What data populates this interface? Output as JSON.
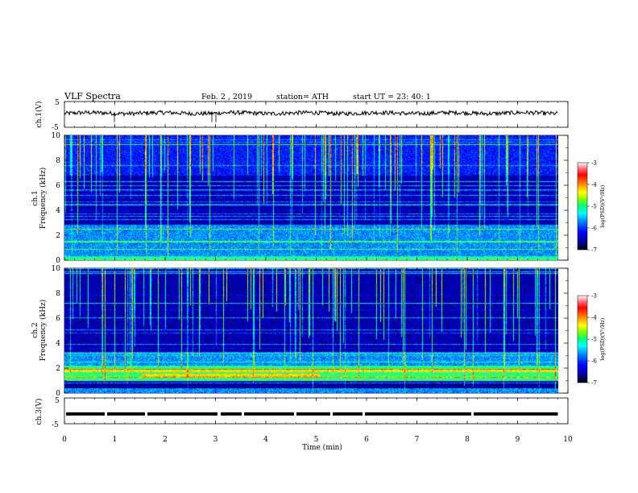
{
  "header": {
    "title": "VLF  Spectra",
    "date": "Feb. 2  , 2019",
    "station": "station= ATH",
    "start": "start  UT  =   23: 40: 1"
  },
  "chart_data": [
    {
      "type": "line",
      "panel": "ch1-waveform",
      "ylabel": "ch.1(V)",
      "ylim": [
        -5,
        5
      ],
      "yticks": [
        "5",
        "-5"
      ],
      "xlim": [
        0,
        10
      ],
      "approx_level": 0.5,
      "approx_amplitude": 1
    },
    {
      "type": "heatmap",
      "panel": "ch1-spectrogram",
      "ylabel": "ch.1  Frequency  (kHz)",
      "ylabel_ch": "ch.1",
      "ylabel_freq": "Frequency  (kHz)",
      "ylim": [
        0,
        10
      ],
      "yticks": [
        "10",
        "8",
        "6",
        "4",
        "2",
        "0"
      ],
      "xlim": [
        0,
        10
      ],
      "data_end_min": 9.8,
      "colorbar": {
        "label": "log(PSD)(V²/Hz)",
        "range": [
          -7,
          -3
        ],
        "ticks": [
          "-3",
          "-4",
          "-5",
          "-6",
          "-7"
        ],
        "colors": [
          "#000000",
          "#00008b",
          "#0000ff",
          "#0080ff",
          "#00ffff",
          "#00ff80",
          "#80ff00",
          "#ffff00",
          "#ff8000",
          "#ff0000",
          "#ff8080",
          "#ffffff"
        ]
      },
      "features": [
        {
          "kHz": [
            0.0,
            0.3
          ],
          "level": "high"
        },
        {
          "kHz": [
            0.3,
            2.9
          ],
          "level": "medium"
        },
        {
          "kHz": [
            2.9,
            6.8
          ],
          "level": "low"
        },
        {
          "kHz": [
            6.8,
            10.0
          ],
          "level": "medium-low"
        }
      ]
    },
    {
      "type": "heatmap",
      "panel": "ch2-spectrogram",
      "ylabel": "ch.2  Frequency  (kHz)",
      "ylabel_ch": "ch.2",
      "ylabel_freq": "Frequency  (kHz)",
      "ylim": [
        0,
        10
      ],
      "yticks": [
        "10",
        "8",
        "6",
        "4",
        "2",
        "0"
      ],
      "xlim": [
        0,
        10
      ],
      "data_end_min": 9.8,
      "colorbar": {
        "label": "log(PSD)(V²/Hz)",
        "range": [
          -7,
          -3
        ],
        "ticks": [
          "-3",
          "-4",
          "-5",
          "-6",
          "-7"
        ]
      },
      "features": [
        {
          "kHz": [
            0.0,
            0.4
          ],
          "level": "medium"
        },
        {
          "kHz": [
            1.0,
            2.2
          ],
          "level": "high"
        },
        {
          "kHz": [
            2.2,
            3.3
          ],
          "level": "medium"
        },
        {
          "kHz": [
            3.3,
            10.0
          ],
          "level": "low"
        }
      ]
    },
    {
      "type": "line",
      "panel": "ch3-waveform",
      "ylabel": "ch.3(V)",
      "ylim": [
        -5,
        5
      ],
      "yticks": [
        "5",
        "-5"
      ],
      "xlim": [
        0,
        10
      ],
      "xlabel": "Time  (min)",
      "xticks": [
        "0",
        "1",
        "2",
        "3",
        "4",
        "5",
        "6",
        "7",
        "8",
        "9",
        "10"
      ],
      "approx_level": -1.2
    }
  ]
}
